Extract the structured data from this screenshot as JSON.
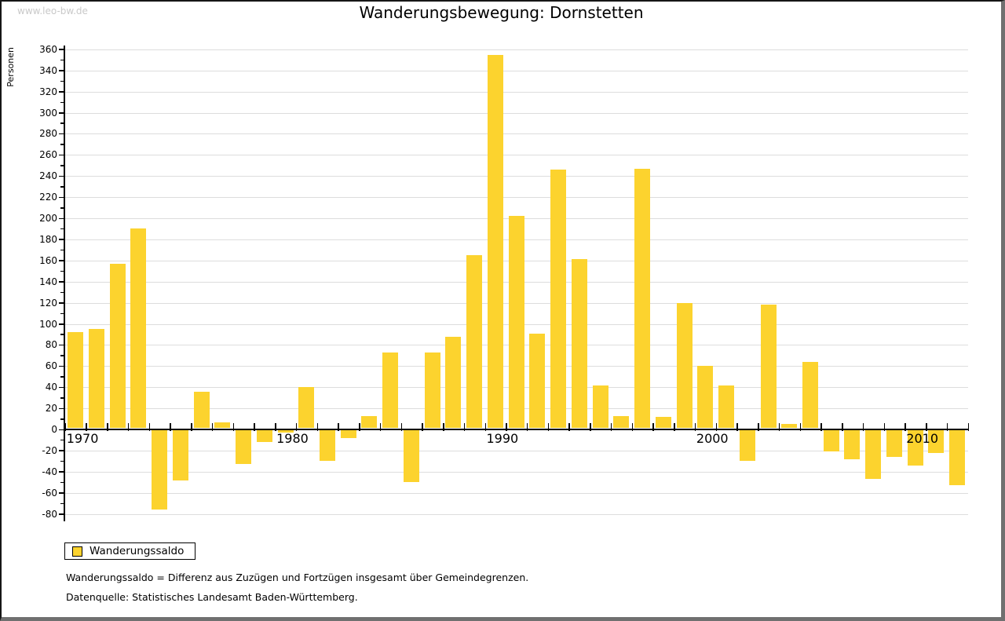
{
  "page": {
    "watermark": "www.leo-bw.de"
  },
  "chart_data": {
    "type": "bar",
    "title": "Wanderungsbewegung: Dornstetten",
    "xlabel": "",
    "ylabel": "Personen",
    "series_name": "Wanderungssaldo",
    "bar_color": "#fcd32e",
    "grid_color": "#dddddd",
    "grid": "horizontal, every 20",
    "legend_position": "bottom-left",
    "ylim": [
      -80,
      360
    ],
    "ytick_step": 20,
    "x_decade_labels": [
      "1970",
      "1980",
      "1990",
      "2000",
      "2010"
    ],
    "categories": [
      1970,
      1971,
      1972,
      1973,
      1974,
      1975,
      1976,
      1977,
      1978,
      1979,
      1980,
      1981,
      1982,
      1983,
      1984,
      1985,
      1986,
      1987,
      1988,
      1989,
      1990,
      1991,
      1992,
      1993,
      1994,
      1995,
      1996,
      1997,
      1998,
      1999,
      2000,
      2001,
      2002,
      2003,
      2004,
      2005,
      2006,
      2007,
      2008,
      2009,
      2010,
      2011,
      2012
    ],
    "values": [
      92,
      95,
      157,
      190,
      -76,
      -48,
      36,
      7,
      -33,
      -12,
      -3,
      40,
      -30,
      -8,
      13,
      73,
      -50,
      73,
      88,
      165,
      355,
      202,
      91,
      246,
      161,
      42,
      13,
      247,
      12,
      120,
      60,
      42,
      -30,
      118,
      5,
      64,
      -21,
      -28,
      -47,
      -26,
      -34,
      -22,
      -53
    ]
  },
  "legend": {
    "label": "Wanderungssaldo"
  },
  "notes": [
    "Wanderungssaldo = Differenz aus Zuzügen und Fortzügen insgesamt über Gemeindegrenzen.",
    "Datenquelle: Statistisches Landesamt Baden-Württemberg."
  ]
}
